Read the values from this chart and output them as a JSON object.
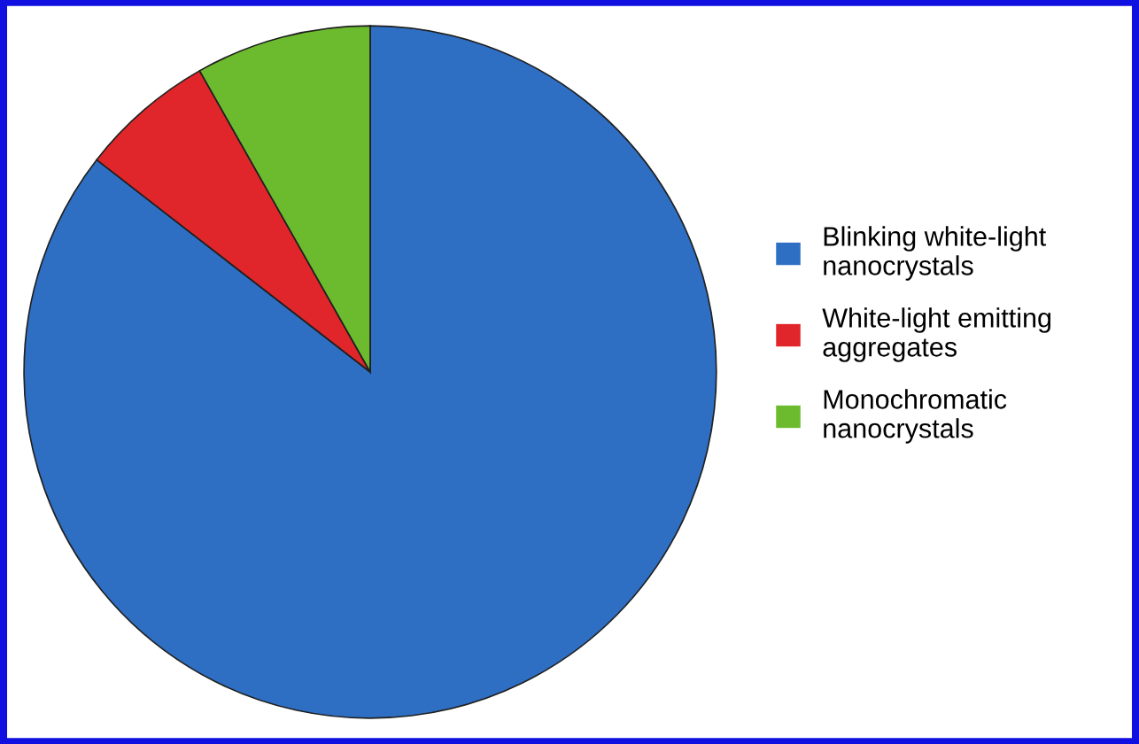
{
  "chart_data": {
    "type": "pie",
    "categories": [
      "Blinking white-light\nnanocrystals",
      "White-light emitting\naggregates",
      "Monochromatic\nnanocrystals"
    ],
    "values": [
      85.5,
      6.3,
      8.2
    ],
    "colors": [
      "#2e6fc4",
      "#e0262a",
      "#6cbb2e"
    ],
    "legend": "right"
  }
}
